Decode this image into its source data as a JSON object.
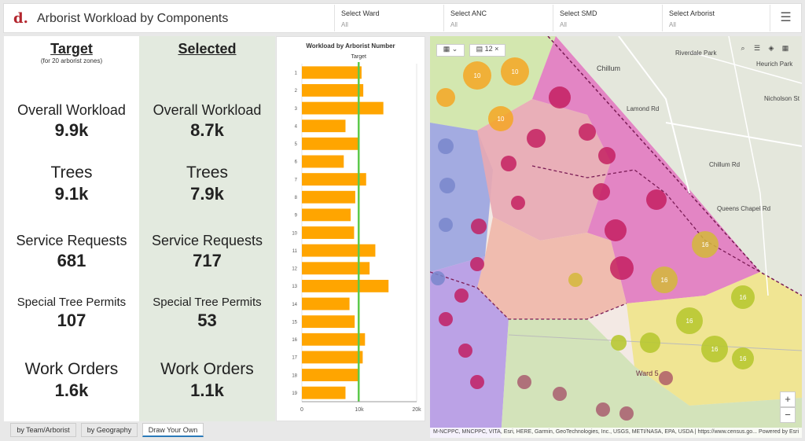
{
  "header": {
    "logo": "d.",
    "title": "Arborist Workload by Components",
    "filters": [
      {
        "label": "Select Ward",
        "value": "All"
      },
      {
        "label": "Select ANC",
        "value": "All"
      },
      {
        "label": "Select SMD",
        "value": "All"
      },
      {
        "label": "Select Arborist",
        "value": "All"
      }
    ],
    "menu_icon": "hamburger-menu-icon"
  },
  "target": {
    "heading": "Target",
    "subheading": "(for 20 arborist zones)",
    "metrics": [
      {
        "label": "Overall Workload",
        "value": "9.9k"
      },
      {
        "label": "Trees",
        "value": "9.1k"
      },
      {
        "label": "Service Requests",
        "value": "681"
      },
      {
        "label": "Special Tree Permits",
        "value": "107"
      },
      {
        "label": "Work Orders",
        "value": "1.6k"
      }
    ]
  },
  "selected": {
    "heading": "Selected",
    "metrics": [
      {
        "label": "Overall Workload",
        "value": "8.7k"
      },
      {
        "label": "Trees",
        "value": "7.9k"
      },
      {
        "label": "Service Requests",
        "value": "717"
      },
      {
        "label": "Special Tree Permits",
        "value": "53"
      },
      {
        "label": "Work Orders",
        "value": "1.1k"
      }
    ]
  },
  "chart_data": {
    "type": "bar",
    "orientation": "horizontal",
    "title": "Workload by Arborist Number",
    "categories": [
      "1",
      "2",
      "3",
      "4",
      "5",
      "6",
      "7",
      "8",
      "9",
      "10",
      "11",
      "12",
      "13",
      "14",
      "15",
      "16",
      "17",
      "18",
      "19"
    ],
    "values": [
      10400,
      10700,
      14200,
      7600,
      9800,
      7300,
      11200,
      9300,
      8500,
      9100,
      12800,
      11800,
      15100,
      8300,
      9200,
      11000,
      10600,
      9800,
      7600
    ],
    "xlim": [
      0,
      20000
    ],
    "xticks": [
      "0",
      "10k",
      "20k"
    ],
    "target_line": {
      "label": "Target",
      "value": 9900
    },
    "bar_color": "#ffa500",
    "target_color": "#5cc94a",
    "grid": true
  },
  "map": {
    "layer_control": {
      "count": "12"
    },
    "place_labels": [
      "Chillum",
      "Ward 5",
      "Chillum Rd",
      "Queens Chapel Rd",
      "Nicholson St",
      "Riverdale Park",
      "Heurich Park",
      "Lamond Rd"
    ],
    "cluster_labels": [
      "10",
      "10",
      "10",
      "16",
      "16",
      "16",
      "16",
      "16",
      "16"
    ],
    "attribution": "M-NCPPC, MNCPPC, VITA, Esri, HERE, Garmin, GeoTechnologies, Inc., USGS, METI/NASA, EPA, USDA | https://www.census.go...",
    "powered_by": "Powered by Esri",
    "zoom_in": "+",
    "zoom_out": "−"
  },
  "tabs": [
    {
      "label": "by Team/Arborist",
      "active": false
    },
    {
      "label": "by Geography",
      "active": false
    },
    {
      "label": "Draw Your Own",
      "active": true
    }
  ]
}
